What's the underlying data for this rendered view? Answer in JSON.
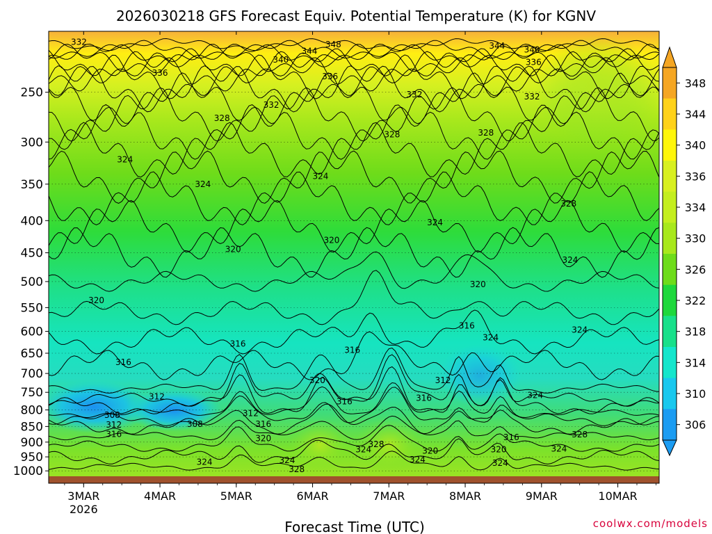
{
  "chart_data": {
    "type": "heatmap",
    "title": "2026030218 GFS Forecast Equiv. Potential Temperature (K) for KGNV",
    "xlabel": "Forecast Time (UTC)",
    "ylabel": "",
    "y_scale": "log",
    "y_range_hpa": [
      1020,
      200
    ],
    "y_ticks": [
      250,
      300,
      350,
      400,
      450,
      500,
      550,
      600,
      650,
      700,
      750,
      800,
      850,
      900,
      950,
      1000
    ],
    "x_range_hours": [
      -5,
      187
    ],
    "x_ticks": [
      {
        "label": "3MAR",
        "sub": "2026",
        "hour": 6
      },
      {
        "label": "4MAR",
        "sub": "",
        "hour": 30
      },
      {
        "label": "5MAR",
        "sub": "",
        "hour": 54
      },
      {
        "label": "6MAR",
        "sub": "",
        "hour": 78
      },
      {
        "label": "7MAR",
        "sub": "",
        "hour": 102
      },
      {
        "label": "8MAR",
        "sub": "",
        "hour": 126
      },
      {
        "label": "9MAR",
        "sub": "",
        "hour": 150
      },
      {
        "label": "10MAR",
        "sub": "",
        "hour": 174
      }
    ],
    "colorbar": {
      "labels": [
        "348",
        "344",
        "340",
        "336",
        "334",
        "330",
        "326",
        "322",
        "318",
        "314",
        "310",
        "306"
      ],
      "values": [
        348,
        344,
        340,
        336,
        334,
        330,
        326,
        322,
        318,
        314,
        310,
        306
      ],
      "colors": [
        "#f5a623",
        "#ffd21a",
        "#fff60a",
        "#d8f020",
        "#c4ee1e",
        "#a8e81c",
        "#6edc1a",
        "#1ed83c",
        "#18e08a",
        "#14e6cc",
        "#19c8ee",
        "#1c9cf2"
      ]
    },
    "contour_labels": [
      {
        "value": "332",
        "hour": 4.5,
        "hpa": 208
      },
      {
        "value": "340",
        "hour": 68,
        "hpa": 222
      },
      {
        "value": "344",
        "hour": 77,
        "hpa": 215
      },
      {
        "value": "348",
        "hour": 84.5,
        "hpa": 210
      },
      {
        "value": "344",
        "hour": 136,
        "hpa": 211
      },
      {
        "value": "340",
        "hour": 147,
        "hpa": 214
      },
      {
        "value": "336",
        "hour": 147.5,
        "hpa": 224
      },
      {
        "value": "336",
        "hour": 30,
        "hpa": 233
      },
      {
        "value": "336",
        "hour": 83.5,
        "hpa": 236
      },
      {
        "value": "332",
        "hour": 65,
        "hpa": 262
      },
      {
        "value": "332",
        "hour": 110,
        "hpa": 252
      },
      {
        "value": "332",
        "hour": 147,
        "hpa": 254
      },
      {
        "value": "328",
        "hour": 49.5,
        "hpa": 275
      },
      {
        "value": "328",
        "hour": 103,
        "hpa": 292
      },
      {
        "value": "328",
        "hour": 132.5,
        "hpa": 290
      },
      {
        "value": "324",
        "hour": 19,
        "hpa": 320
      },
      {
        "value": "324",
        "hour": 43.5,
        "hpa": 350
      },
      {
        "value": "324",
        "hour": 80.5,
        "hpa": 340
      },
      {
        "value": "324",
        "hour": 116.5,
        "hpa": 403
      },
      {
        "value": "328",
        "hour": 158.5,
        "hpa": 376
      },
      {
        "value": "320",
        "hour": 53,
        "hpa": 444
      },
      {
        "value": "320",
        "hour": 84,
        "hpa": 430
      },
      {
        "value": "324",
        "hour": 159,
        "hpa": 462
      },
      {
        "value": "320",
        "hour": 130,
        "hpa": 505
      },
      {
        "value": "320",
        "hour": 10,
        "hpa": 536
      },
      {
        "value": "316",
        "hour": 126.5,
        "hpa": 588
      },
      {
        "value": "324",
        "hour": 134,
        "hpa": 614
      },
      {
        "value": "324",
        "hour": 162,
        "hpa": 597
      },
      {
        "value": "316",
        "hour": 54.5,
        "hpa": 628
      },
      {
        "value": "316",
        "hour": 90.5,
        "hpa": 643
      },
      {
        "value": "316",
        "hour": 18.5,
        "hpa": 672
      },
      {
        "value": "320",
        "hour": 79.5,
        "hpa": 718
      },
      {
        "value": "312",
        "hour": 119,
        "hpa": 718
      },
      {
        "value": "316",
        "hour": 113,
        "hpa": 766
      },
      {
        "value": "316",
        "hour": 88,
        "hpa": 776
      },
      {
        "value": "312",
        "hour": 29,
        "hpa": 762
      },
      {
        "value": "324",
        "hour": 148,
        "hpa": 758
      },
      {
        "value": "312",
        "hour": 58.5,
        "hpa": 810
      },
      {
        "value": "308",
        "hour": 15,
        "hpa": 815
      },
      {
        "value": "308",
        "hour": 41,
        "hpa": 843
      },
      {
        "value": "312",
        "hour": 15.5,
        "hpa": 845
      },
      {
        "value": "316",
        "hour": 62.5,
        "hpa": 843
      },
      {
        "value": "316",
        "hour": 15.5,
        "hpa": 874
      },
      {
        "value": "320",
        "hour": 62.5,
        "hpa": 888
      },
      {
        "value": "316",
        "hour": 140.5,
        "hpa": 885
      },
      {
        "value": "328",
        "hour": 162,
        "hpa": 876
      },
      {
        "value": "328",
        "hour": 98,
        "hpa": 907
      },
      {
        "value": "324",
        "hour": 94,
        "hpa": 925
      },
      {
        "value": "320",
        "hour": 115,
        "hpa": 930
      },
      {
        "value": "320",
        "hour": 136.5,
        "hpa": 925
      },
      {
        "value": "324",
        "hour": 155.5,
        "hpa": 922
      },
      {
        "value": "324",
        "hour": 44,
        "hpa": 968
      },
      {
        "value": "324",
        "hour": 70,
        "hpa": 962
      },
      {
        "value": "324",
        "hour": 111,
        "hpa": 960
      },
      {
        "value": "324",
        "hour": 137,
        "hpa": 972
      },
      {
        "value": "328",
        "hour": 73,
        "hpa": 994
      }
    ]
  },
  "credit": "coolwx.com/models"
}
